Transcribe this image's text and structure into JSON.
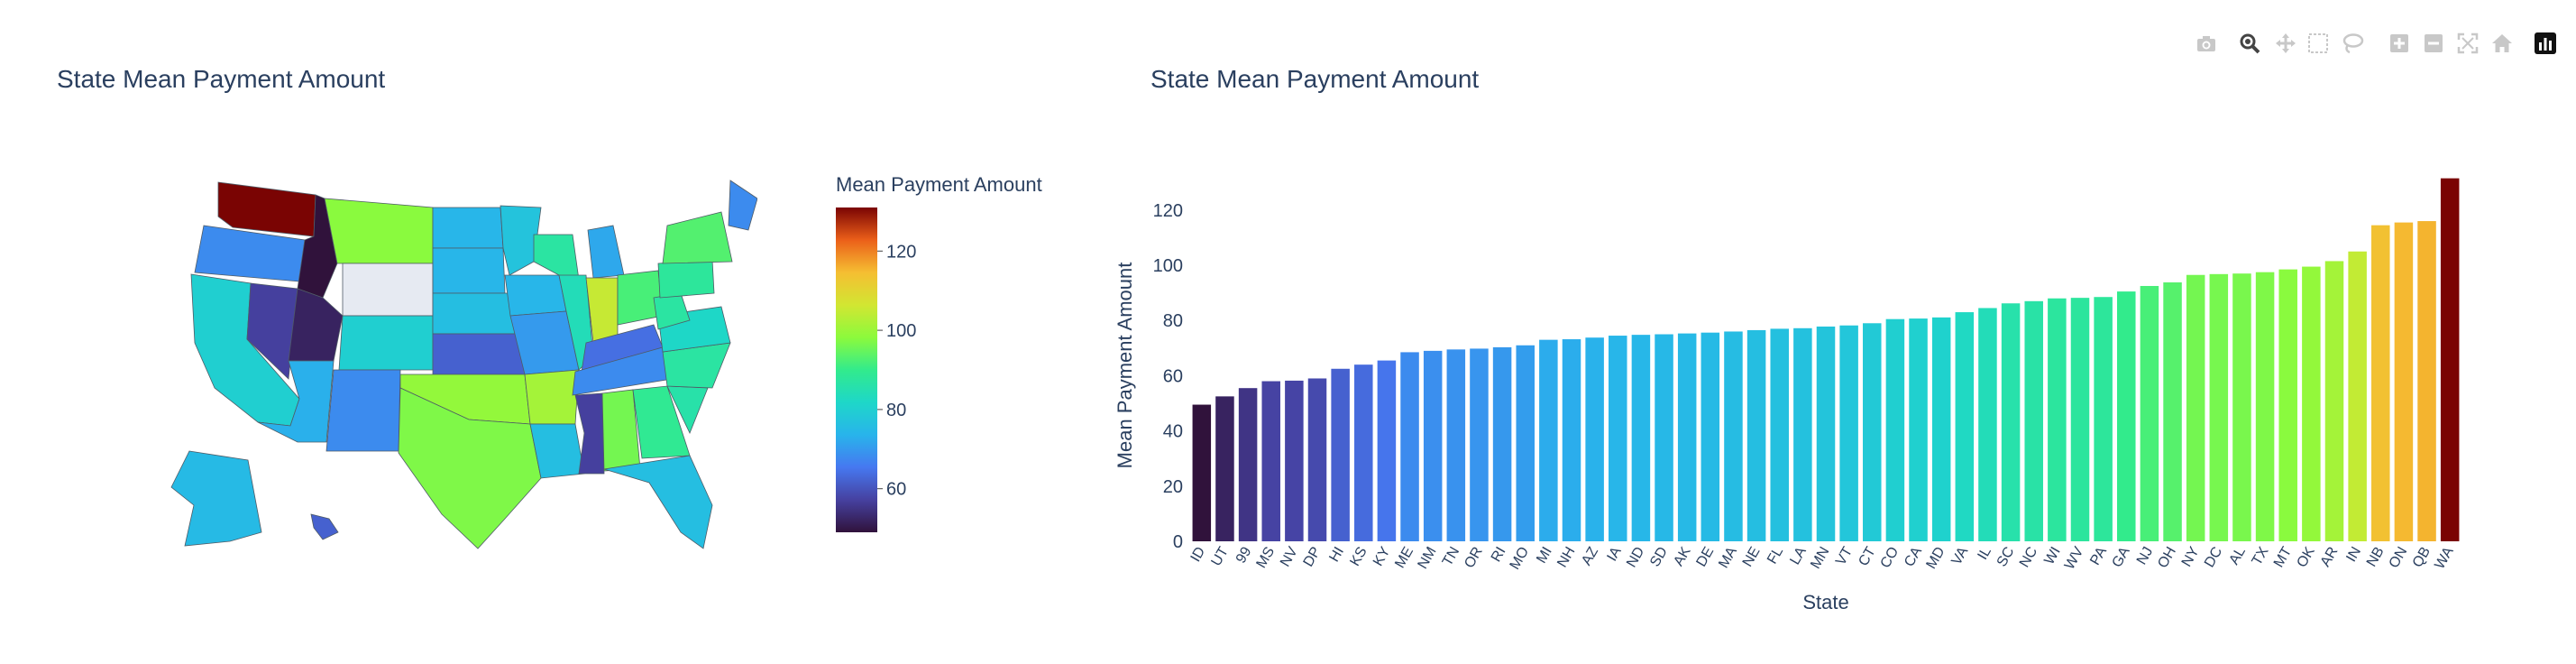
{
  "colors": {
    "title_text": "#2a3f5f",
    "modebar_icon": "#c8c8c8",
    "modebar_active": "#444444",
    "no_data": "#e6eaf2",
    "map_border": "#4f5b66"
  },
  "modebar": {
    "buttons": [
      {
        "name": "download-plot-icon",
        "label": "Download plot as a png"
      },
      {
        "name": "zoom-icon",
        "label": "Zoom"
      },
      {
        "name": "pan-icon",
        "label": "Pan"
      },
      {
        "name": "box-select-icon",
        "label": "Box Select"
      },
      {
        "name": "lasso-select-icon",
        "label": "Lasso Select"
      },
      {
        "name": "zoom-in-icon",
        "label": "Zoom in"
      },
      {
        "name": "zoom-out-icon",
        "label": "Zoom out"
      },
      {
        "name": "autoscale-icon",
        "label": "Autoscale"
      },
      {
        "name": "reset-axes-icon",
        "label": "Reset axes"
      },
      {
        "name": "plotly-logo-icon",
        "label": "Produced with Plotly"
      }
    ]
  },
  "chart_data": [
    {
      "type": "choropleth",
      "title": "State Mean Payment Amount",
      "colorbar_title": "Mean Payment Amount",
      "colorscale": "turbo",
      "colorbar_ticks": [
        60,
        80,
        100,
        120
      ],
      "zrange": [
        49,
        131
      ],
      "regions": [
        {
          "state": "WA",
          "value": 131
        },
        {
          "state": "OR",
          "value": 68
        },
        {
          "state": "CA",
          "value": 80
        },
        {
          "state": "NV",
          "value": 57
        },
        {
          "state": "ID",
          "value": 49
        },
        {
          "state": "MT",
          "value": 98
        },
        {
          "state": "WY",
          "value": null
        },
        {
          "state": "UT",
          "value": 52
        },
        {
          "state": "AZ",
          "value": 73
        },
        {
          "state": "CO",
          "value": 80
        },
        {
          "state": "NM",
          "value": 68
        },
        {
          "state": "ND",
          "value": 74
        },
        {
          "state": "SD",
          "value": 74
        },
        {
          "state": "NE",
          "value": 76
        },
        {
          "state": "KS",
          "value": 62
        },
        {
          "state": "OK",
          "value": 99
        },
        {
          "state": "TX",
          "value": 97
        },
        {
          "state": "MN",
          "value": 77
        },
        {
          "state": "IA",
          "value": 74
        },
        {
          "state": "MO",
          "value": 70
        },
        {
          "state": "AR",
          "value": 101
        },
        {
          "state": "LA",
          "value": 76
        },
        {
          "state": "WI",
          "value": 87
        },
        {
          "state": "IL",
          "value": 84
        },
        {
          "state": "MI",
          "value": 72
        },
        {
          "state": "IN",
          "value": 105
        },
        {
          "state": "OH",
          "value": 92
        },
        {
          "state": "KY",
          "value": 64
        },
        {
          "state": "TN",
          "value": 68
        },
        {
          "state": "MS",
          "value": 57
        },
        {
          "state": "AL",
          "value": 96
        },
        {
          "state": "GA",
          "value": 89
        },
        {
          "state": "FL",
          "value": 76
        },
        {
          "state": "SC",
          "value": 86
        },
        {
          "state": "NC",
          "value": 87
        },
        {
          "state": "VA",
          "value": 82
        },
        {
          "state": "WV",
          "value": 87
        },
        {
          "state": "PA",
          "value": 88
        },
        {
          "state": "NY",
          "value": 93
        },
        {
          "state": "ME",
          "value": 68
        },
        {
          "state": "AK",
          "value": 75
        },
        {
          "state": "HI",
          "value": 62
        }
      ]
    },
    {
      "type": "bar",
      "title": "State Mean Payment Amount",
      "xlabel": "State",
      "ylabel": "Mean Payment Amount",
      "ylim": [
        0,
        134
      ],
      "yticks": [
        0,
        20,
        40,
        60,
        80,
        100,
        120
      ],
      "colorscale": "turbo",
      "categories": [
        "ID",
        "UT",
        "99",
        "MS",
        "NV",
        "DP",
        "HI",
        "KS",
        "KY",
        "ME",
        "NM",
        "TN",
        "OR",
        "RI",
        "MO",
        "MI",
        "NH",
        "AZ",
        "IA",
        "ND",
        "SD",
        "AK",
        "DE",
        "MA",
        "NE",
        "FL",
        "LA",
        "MN",
        "VT",
        "CT",
        "CO",
        "CA",
        "MD",
        "VA",
        "IL",
        "SC",
        "NC",
        "WI",
        "WV",
        "PA",
        "GA",
        "NJ",
        "OH",
        "NY",
        "DC",
        "AL",
        "TX",
        "MT",
        "OK",
        "AR",
        "IN",
        "NB",
        "ON",
        "QB",
        "WA"
      ],
      "values": [
        49.5,
        52.5,
        55.5,
        58,
        58.2,
        59,
        62.5,
        64,
        65.5,
        68.5,
        69,
        69.5,
        69.8,
        70.3,
        71,
        73,
        73.2,
        73.8,
        74.5,
        74.8,
        75,
        75.3,
        75.6,
        76,
        76.5,
        77,
        77.2,
        77.8,
        78.2,
        79,
        80.5,
        80.7,
        81.1,
        83,
        84.5,
        86.2,
        87,
        88,
        88.2,
        88.5,
        90.5,
        92.5,
        93.8,
        96.5,
        96.8,
        97,
        97.5,
        98.5,
        99.5,
        101.5,
        105,
        114.5,
        115.5,
        116,
        131.5
      ]
    }
  ]
}
